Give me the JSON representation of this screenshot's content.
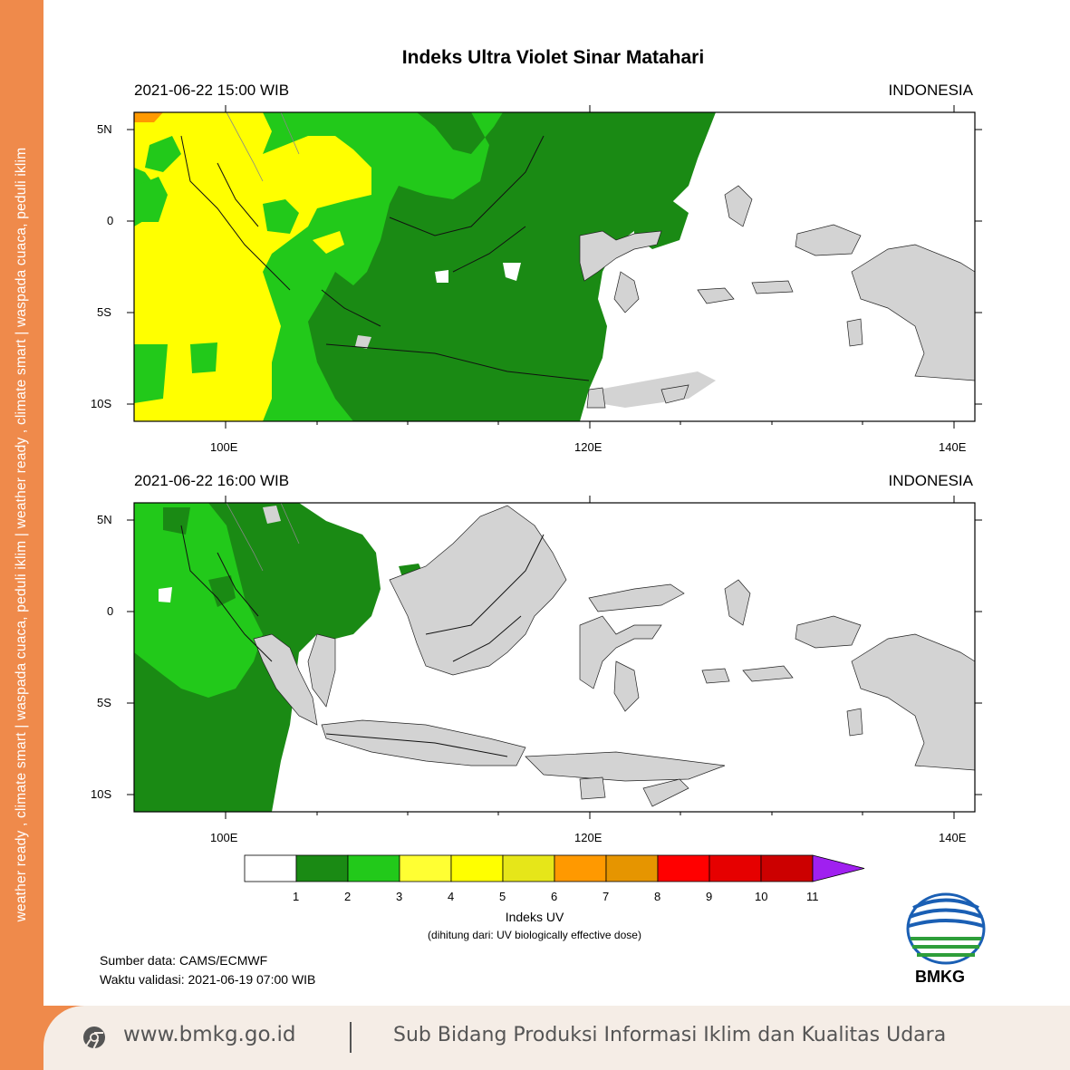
{
  "side_text": "weather ready , climate smart   |   waspada cuaca, peduli iklim   |   weather ready , climate smart   |   waspada cuaca, peduli iklim",
  "title": "Indeks Ultra Violet Sinar Matahari",
  "panels": [
    {
      "time": "2021-06-22  15:00 WIB",
      "region": "INDONESIA"
    },
    {
      "time": "2021-06-22  16:00 WIB",
      "region": "INDONESIA"
    }
  ],
  "lat_labels": [
    "5N",
    "0",
    "5S",
    "10S"
  ],
  "lon_labels": [
    "100E",
    "120E",
    "140E"
  ],
  "colorbar": {
    "labels": [
      "1",
      "2",
      "3",
      "4",
      "5",
      "6",
      "7",
      "8",
      "9",
      "10",
      "11"
    ],
    "colors": [
      "#ffffff",
      "#1a8a14",
      "#22c91a",
      "#ffff33",
      "#ffff00",
      "#e6e619",
      "#ff9900",
      "#e69500",
      "#ff0000",
      "#e60000",
      "#cc0000",
      "#a020f0"
    ]
  },
  "unit_label": "Indeks UV",
  "unit_sub": "(dihitung dari: UV biologically effective dose)",
  "source": "Sumber data: CAMS/ECMWF",
  "valid_time": "Waktu validasi: 2021-06-19 07:00 WIB",
  "logo_text": "BMKG",
  "footer": {
    "website": "www.bmkg.go.id",
    "text": "Sub Bidang Produksi Informasi Iklim dan Kualitas Udara"
  }
}
